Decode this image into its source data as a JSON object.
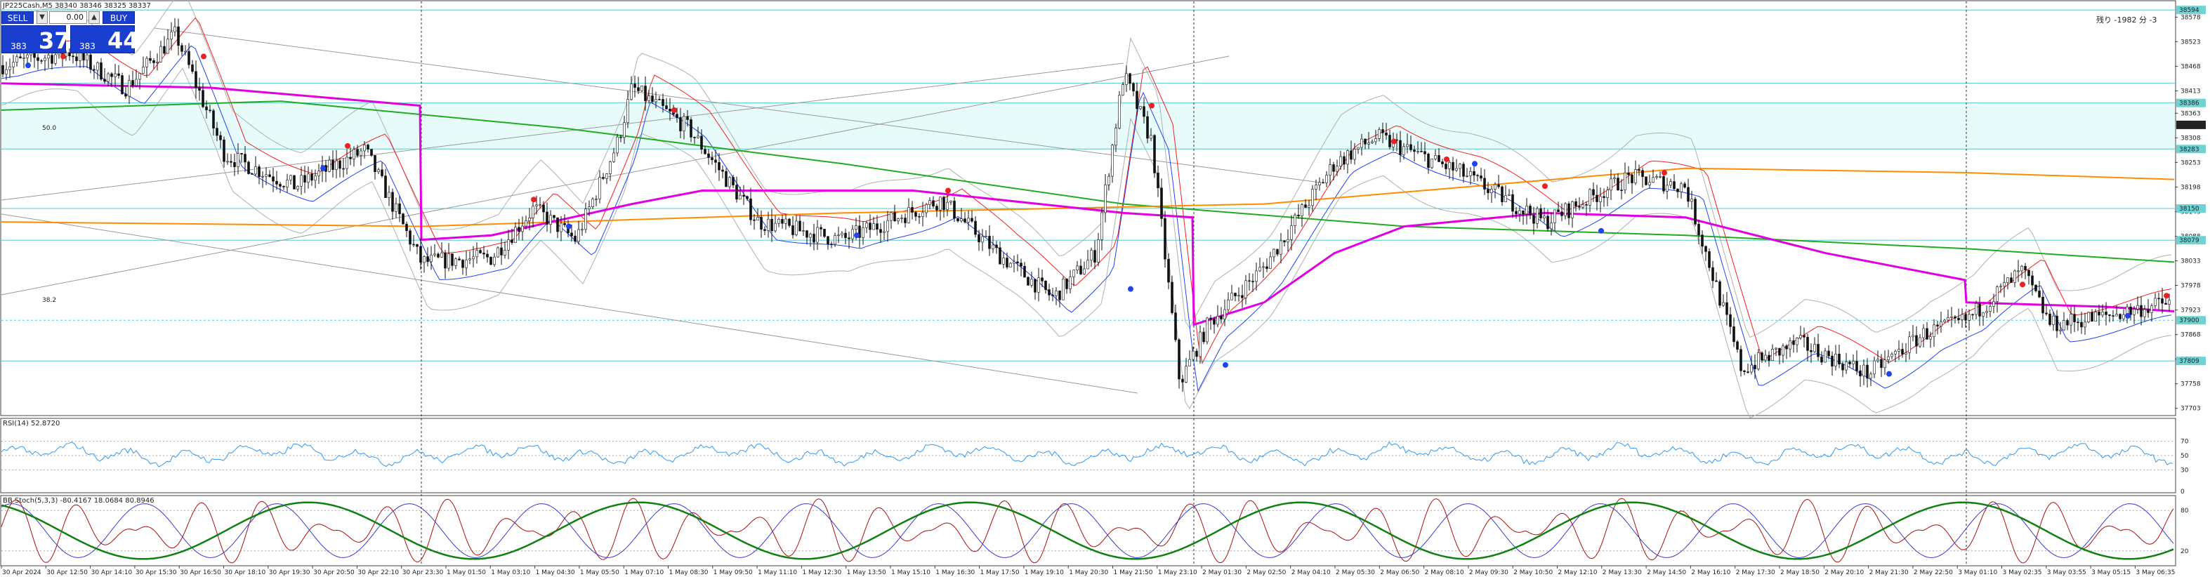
{
  "header": {
    "symbol_line": "JP225Cash,M5  38340 38346 38325 38337",
    "note_top_right": "残り -1982 分 -3"
  },
  "trade_panel": {
    "sell_label": "SELL",
    "buy_label": "BUY",
    "volume": "0.00",
    "sell_price_small": "383",
    "sell_price_big": "37",
    "buy_price_small": "383",
    "buy_price_big": "44"
  },
  "main_axis": {
    "ticks": [
      "38578",
      "38523",
      "38468",
      "38413",
      "38363",
      "38308",
      "38253",
      "38198",
      "38143",
      "38088",
      "38033",
      "37978",
      "37923",
      "37868",
      "37813",
      "37758",
      "37703"
    ],
    "highlight_labels": [
      {
        "text": "38594",
        "price": 38594,
        "color": "#6fd3d3"
      },
      {
        "text": "38386",
        "price": 38386,
        "color": "#6fd3d3"
      },
      {
        "text": "38337",
        "price": 38337,
        "color": "#222222"
      },
      {
        "text": "38283",
        "price": 38283,
        "color": "#6fd3d3"
      },
      {
        "text": "38150",
        "price": 38150,
        "color": "#6fd3d3"
      },
      {
        "text": "38079",
        "price": 38079,
        "color": "#6fd3d3"
      },
      {
        "text": "37900",
        "price": 37900,
        "color": "#6fd3d3"
      },
      {
        "text": "37809",
        "price": 37809,
        "color": "#6fd3d3"
      }
    ],
    "fib_labels": [
      "50.0",
      "38.2"
    ]
  },
  "rsi_panel": {
    "label": "RSI(14) 52.8720",
    "ticks": [
      "70",
      "50",
      "30",
      "0"
    ]
  },
  "stoch_panel": {
    "label": "BB Stoch(5,3,3) -80.4167 18.0684 80.8946",
    "ticks": [
      "80",
      "20"
    ]
  },
  "time_axis": [
    "30 Apr 2024",
    "30 Apr 12:50",
    "30 Apr 14:10",
    "30 Apr 15:30",
    "30 Apr 16:50",
    "30 Apr 18:10",
    "30 Apr 19:30",
    "30 Apr 20:50",
    "30 Apr 22:10",
    "30 Apr 23:30",
    "1 May 01:50",
    "1 May 03:10",
    "1 May 04:30",
    "1 May 05:50",
    "1 May 07:10",
    "1 May 08:30",
    "1 May 09:50",
    "1 May 11:10",
    "1 May 12:30",
    "1 May 13:50",
    "1 May 15:10",
    "1 May 16:30",
    "1 May 17:50",
    "1 May 19:10",
    "1 May 20:30",
    "1 May 21:50",
    "1 May 23:10",
    "2 May 01:30",
    "2 May 02:50",
    "2 May 04:10",
    "2 May 05:30",
    "2 May 06:50",
    "2 May 08:10",
    "2 May 09:30",
    "2 May 10:50",
    "2 May 12:10",
    "2 May 13:30",
    "2 May 14:50",
    "2 May 16:10",
    "2 May 17:30",
    "2 May 18:50",
    "2 May 20:10",
    "2 May 21:30",
    "2 May 22:50",
    "3 May 01:10",
    "3 May 02:35",
    "3 May 03:55",
    "3 May 05:15",
    "3 May 06:35"
  ],
  "colors": {
    "zone_fill": "#e8fbfb",
    "level_line": "#5cc8c8",
    "ma_magenta": "#e000e0",
    "ma_green": "#22aa22",
    "ma_orange": "#ff8c00",
    "ma_red": "#ee2020",
    "ma_blue": "#2244ee",
    "bb_grey": "#b0b0b0",
    "rsi_line": "#3399ee",
    "stoch_red": "#aa1010",
    "stoch_blue": "#3a3acc",
    "stoch_green": "#108010"
  }
}
